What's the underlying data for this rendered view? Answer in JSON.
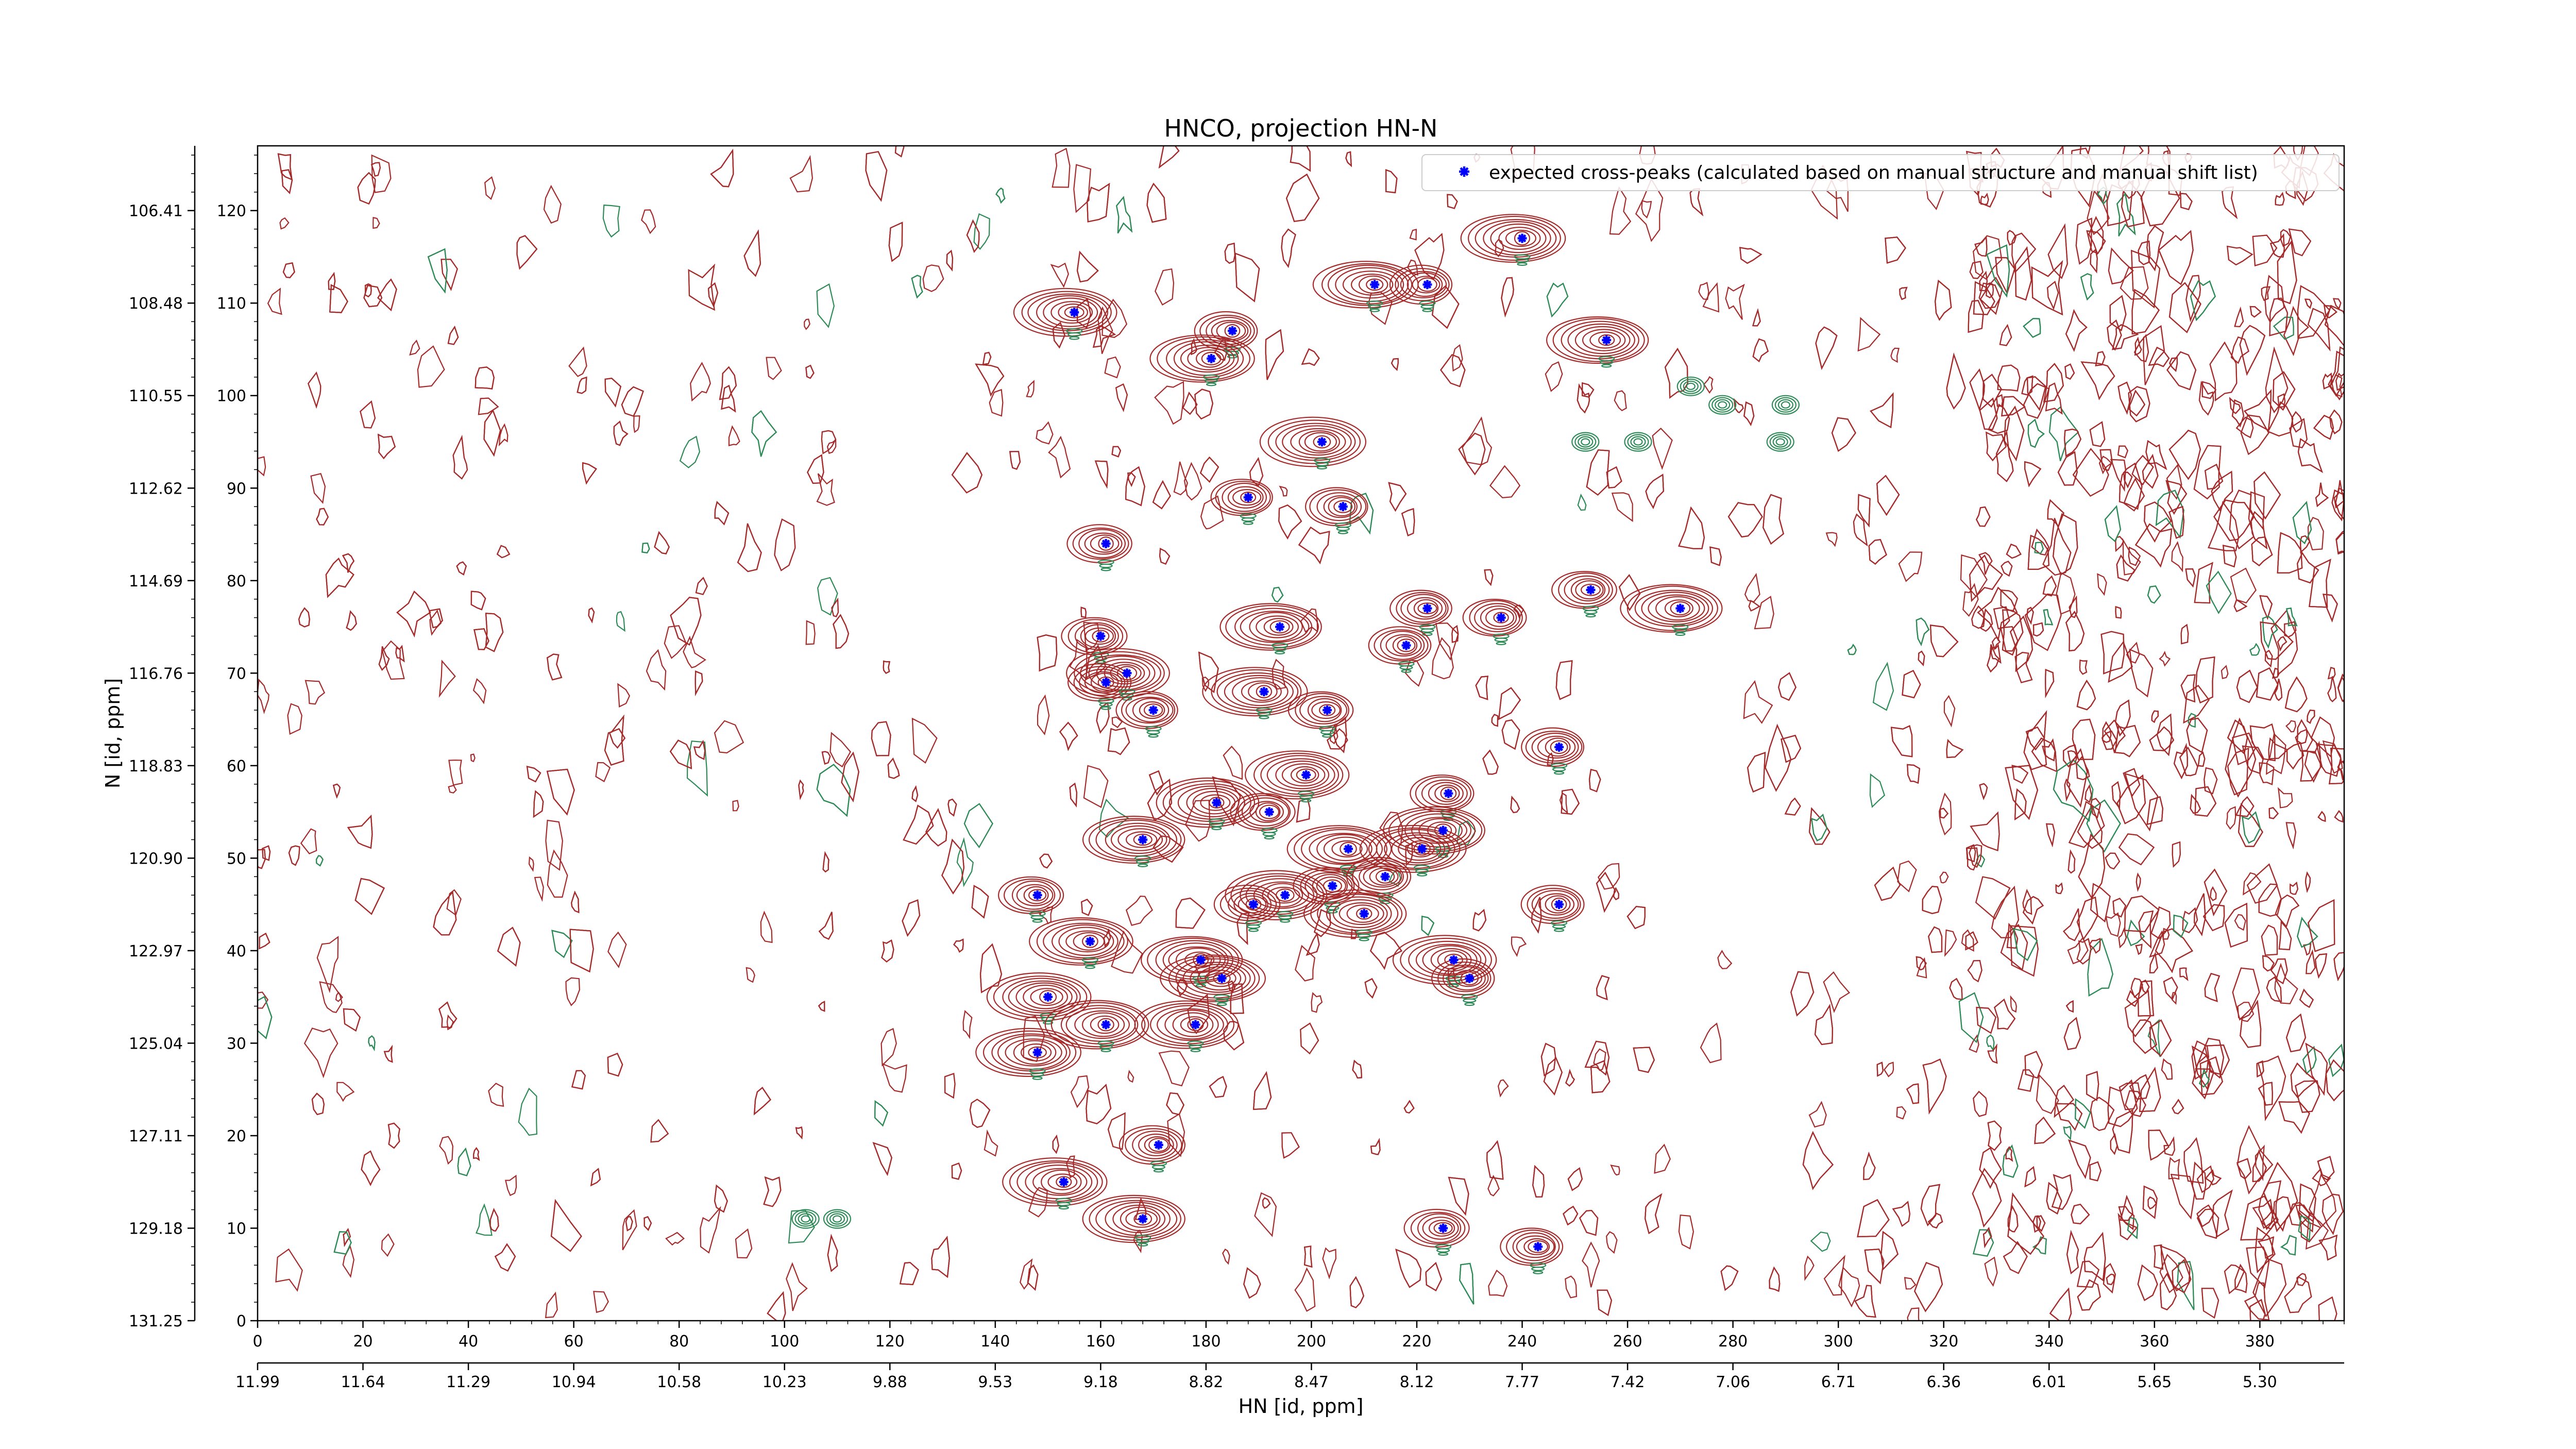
{
  "chart_data": {
    "type": "scatter",
    "title": "HNCO, projection HN-N",
    "xlabel": "HN [id, ppm]",
    "ylabel": "N [id, ppm]",
    "x_index_ticks": [
      "0",
      "20",
      "40",
      "60",
      "80",
      "100",
      "120",
      "140",
      "160",
      "180",
      "200",
      "220",
      "240",
      "260",
      "280",
      "300",
      "320",
      "340",
      "360",
      "380"
    ],
    "x_ppm_ticks": [
      "11.99",
      "11.64",
      "11.29",
      "10.94",
      "10.58",
      "10.23",
      "9.88",
      "9.53",
      "9.18",
      "8.82",
      "8.47",
      "8.12",
      "7.77",
      "7.42",
      "7.06",
      "6.71",
      "6.36",
      "6.01",
      "5.65",
      "5.30"
    ],
    "y_index_ticks": [
      "0",
      "10",
      "20",
      "30",
      "40",
      "50",
      "60",
      "70",
      "80",
      "90",
      "100",
      "110",
      "120"
    ],
    "y_ppm_ticks": [
      "131.25",
      "129.18",
      "127.11",
      "125.04",
      "122.97",
      "120.90",
      "118.83",
      "116.76",
      "114.69",
      "112.62",
      "110.55",
      "108.48",
      "106.41"
    ],
    "xlim": [
      0,
      396
    ],
    "ylim": [
      0,
      127
    ],
    "legend": {
      "label": "expected cross-peaks (calculated based on manual structure and manual shift list)",
      "position": "top-right",
      "marker_color": "#0000ff"
    },
    "colors": {
      "contour_positive": "#a52a2a",
      "contour_negative": "#2e8b57",
      "peak_marker": "#0000ff"
    },
    "grid": false,
    "series": [
      {
        "name": "expected cross-peaks (calculated based on manual structure and manual shift list)",
        "points": [
          [
            240,
            117
          ],
          [
            155,
            109
          ],
          [
            212,
            112
          ],
          [
            222,
            112
          ],
          [
            185,
            107
          ],
          [
            181,
            104
          ],
          [
            256,
            106
          ],
          [
            202,
            95
          ],
          [
            188,
            89
          ],
          [
            206,
            88
          ],
          [
            161,
            84
          ],
          [
            253,
            79
          ],
          [
            222,
            77
          ],
          [
            236,
            76
          ],
          [
            270,
            77
          ],
          [
            194,
            75
          ],
          [
            160,
            74
          ],
          [
            218,
            73
          ],
          [
            161,
            69
          ],
          [
            165,
            70
          ],
          [
            170,
            66
          ],
          [
            191,
            68
          ],
          [
            203,
            66
          ],
          [
            247,
            62
          ],
          [
            199,
            59
          ],
          [
            182,
            56
          ],
          [
            192,
            55
          ],
          [
            226,
            57
          ],
          [
            225,
            53
          ],
          [
            221,
            51
          ],
          [
            168,
            52
          ],
          [
            207,
            51
          ],
          [
            148,
            46
          ],
          [
            214,
            48
          ],
          [
            204,
            47
          ],
          [
            195,
            46
          ],
          [
            189,
            45
          ],
          [
            210,
            44
          ],
          [
            247,
            45
          ],
          [
            158,
            41
          ],
          [
            179,
            39
          ],
          [
            183,
            37
          ],
          [
            227,
            39
          ],
          [
            230,
            37
          ],
          [
            150,
            35
          ],
          [
            161,
            32
          ],
          [
            178,
            32
          ],
          [
            148,
            29
          ],
          [
            171,
            19
          ],
          [
            153,
            15
          ],
          [
            168,
            11
          ],
          [
            225,
            10
          ],
          [
            243,
            8
          ]
        ]
      }
    ]
  }
}
